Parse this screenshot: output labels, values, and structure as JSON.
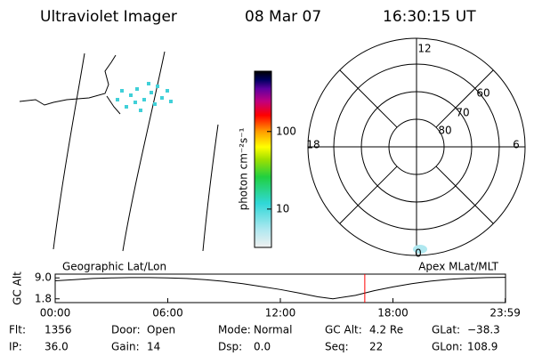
{
  "header": {
    "title": "Ultraviolet Imager",
    "date": "08 Mar 07",
    "time": "16:30:15 UT"
  },
  "colorbar": {
    "label": "photon cm⁻²s⁻¹",
    "log": true,
    "lim": [
      3.2,
      600
    ],
    "ticks": [
      10,
      100
    ]
  },
  "polar": {
    "mlt_labels": [
      "12",
      "18",
      "6",
      "0"
    ],
    "lat_labels": [
      "80",
      "70",
      "60"
    ]
  },
  "chart_data": {
    "type": "line",
    "left_label": "Geographic Lat/Lon",
    "right_label": "Apex MLat/MLT",
    "ylabel": "GC Alt",
    "x": [
      0,
      1,
      2,
      3,
      4,
      5,
      6,
      7,
      8,
      9,
      10,
      11,
      12,
      13,
      14,
      14.8,
      16,
      17,
      18,
      19,
      20,
      21,
      22,
      23,
      24
    ],
    "values": [
      8.0,
      8.4,
      8.8,
      9.0,
      9.1,
      9.1,
      9.0,
      8.8,
      8.4,
      7.8,
      7.0,
      6.0,
      5.0,
      3.8,
      2.5,
      1.8,
      3.0,
      4.6,
      5.9,
      7.0,
      7.9,
      8.5,
      8.9,
      9.1,
      9.2
    ],
    "color": "#000000",
    "marker_x": 16.5,
    "marker_color": "#ff0000",
    "xlim": [
      0,
      24
    ],
    "ylim": [
      0.5,
      10.3
    ],
    "xticks": [
      {
        "value": 0,
        "label": "00:00"
      },
      {
        "value": 6,
        "label": "06:00"
      },
      {
        "value": 12,
        "label": "12:00"
      },
      {
        "value": 18,
        "label": "18:00"
      },
      {
        "value": 23.983,
        "label": "23:59"
      }
    ],
    "yticks": [
      {
        "value": 9,
        "label": "9.0"
      },
      {
        "value": 1.8,
        "label": "1.8"
      }
    ]
  },
  "status": [
    [
      "Flt:",
      "1356"
    ],
    [
      "Door:",
      "Open"
    ],
    [
      "Mode:",
      "Normal"
    ],
    [
      "GC Alt:",
      "4.2 Re"
    ],
    [
      "GLat:",
      "−38.3"
    ],
    [
      "IP:",
      "36.0"
    ],
    [
      "Gain:",
      "14"
    ],
    [
      "Dsp:",
      "0.0"
    ],
    [
      "Seq:",
      "22"
    ],
    [
      "GLon:",
      "108.9"
    ]
  ]
}
